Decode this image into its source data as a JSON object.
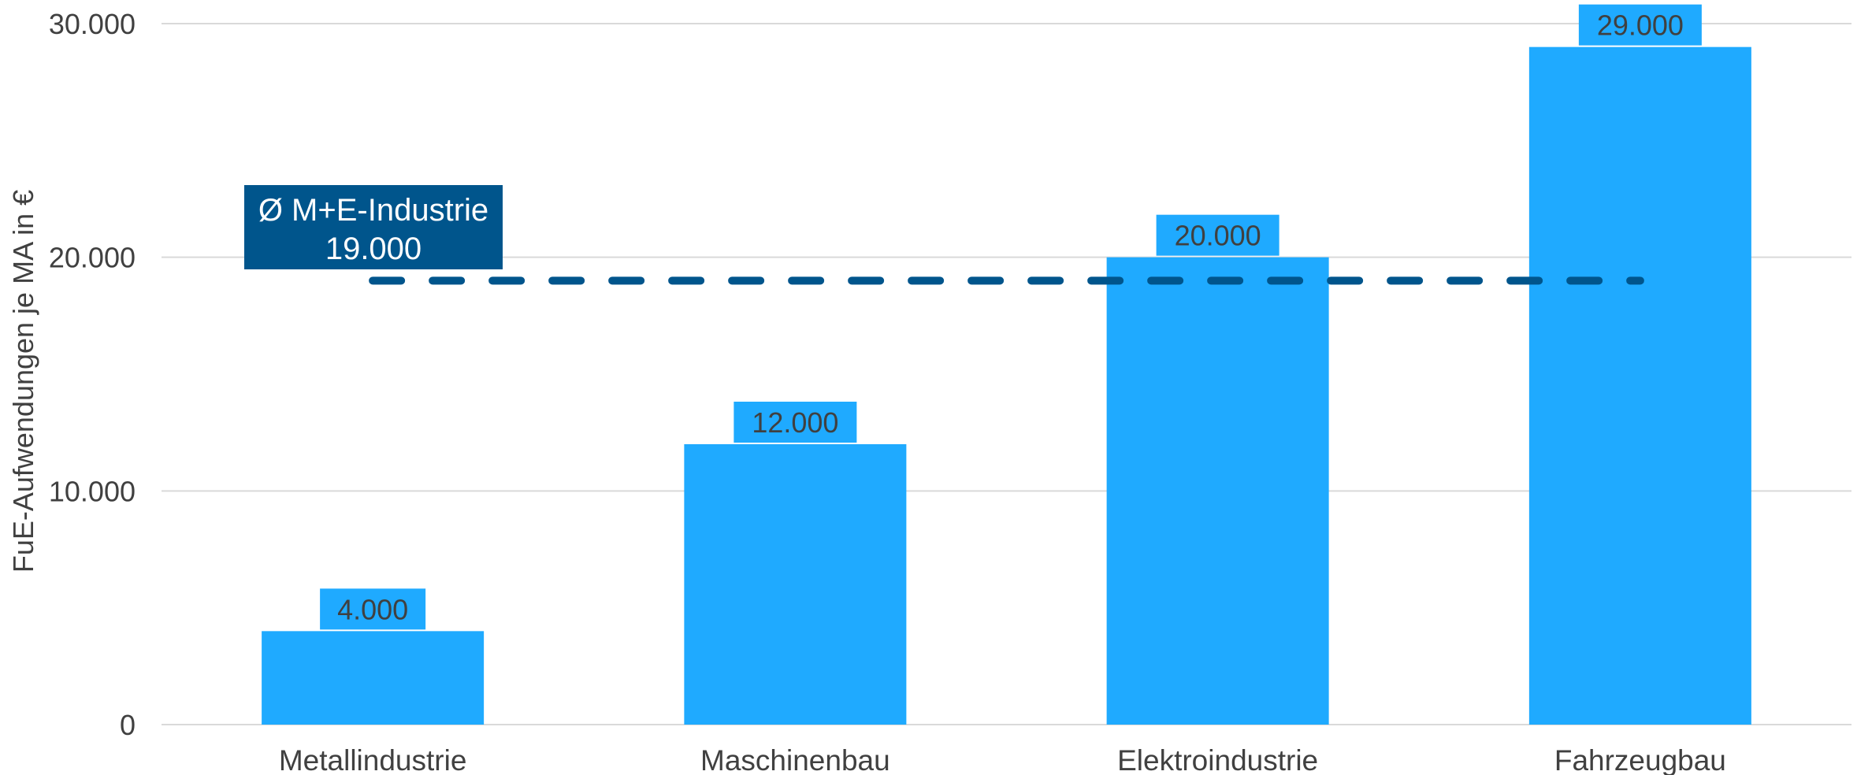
{
  "chart_data": {
    "type": "bar",
    "categories": [
      "Metallindustrie",
      "Maschinenbau",
      "Elektroindustrie",
      "Fahrzeugbau"
    ],
    "series": [
      {
        "values": [
          4000,
          12000,
          20000,
          29000
        ]
      }
    ],
    "data_labels": [
      "4.000",
      "12.000",
      "20.000",
      "29.000"
    ],
    "title": "",
    "xlabel": "",
    "ylabel": "FuE-Aufwendungen je MA in €",
    "ylim": [
      0,
      30000
    ],
    "yticks": [
      0,
      10000,
      20000,
      30000
    ],
    "ytick_labels": [
      "0",
      "10.000",
      "20.000",
      "30.000"
    ],
    "grid": true,
    "average_line": {
      "value": 19000,
      "label_line1": "Ø M+E-Industrie",
      "label_line2": "19.000",
      "style": "dashed"
    },
    "colors": {
      "bar": "#1FAAFF",
      "data_label_bg": "#1FAAFF",
      "average_line": "#00558C",
      "average_label_bg": "#00558C",
      "grid": "#D9D9D9",
      "text": "#404040"
    }
  }
}
